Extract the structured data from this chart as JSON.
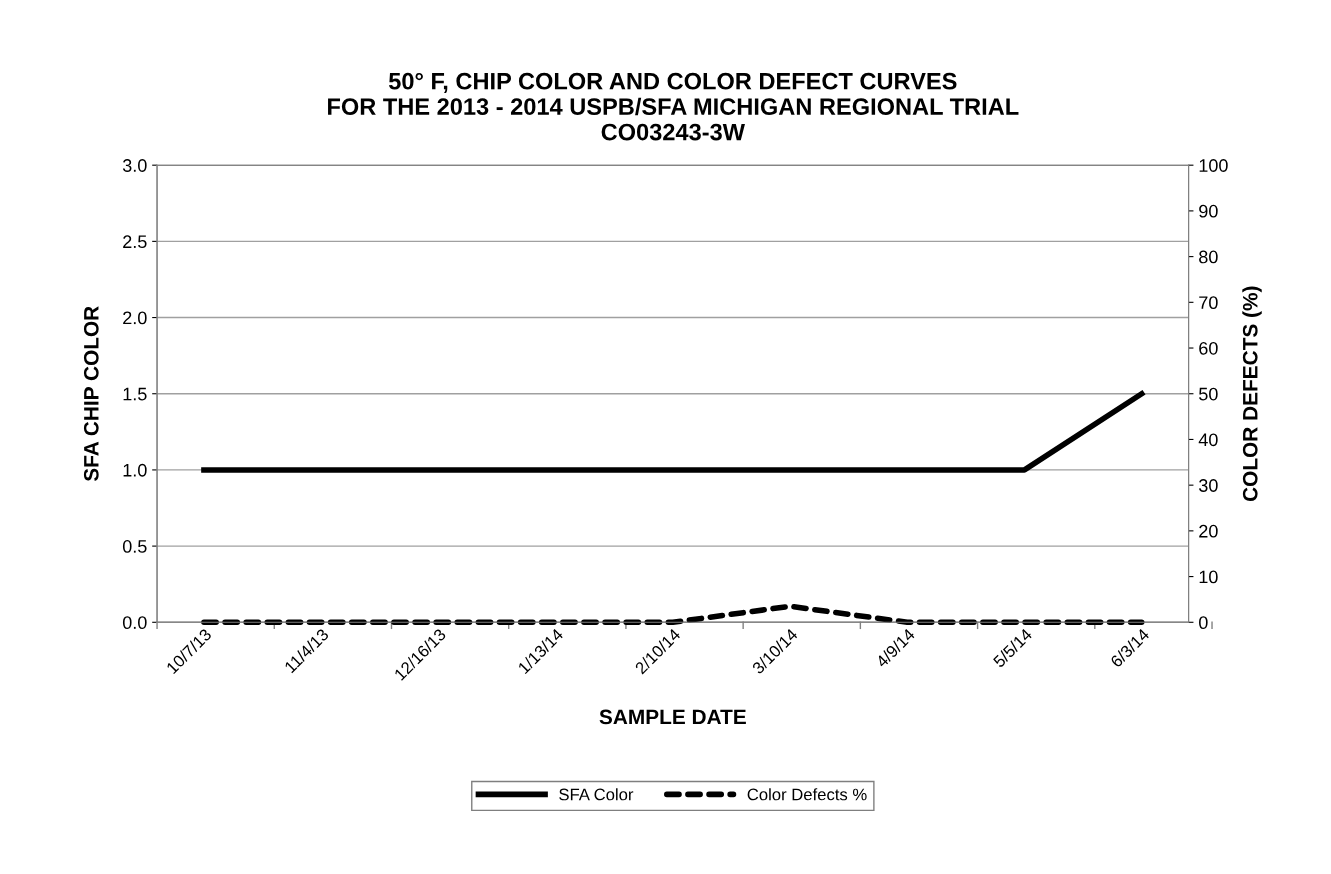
{
  "chart_data": {
    "type": "line",
    "title": "50° F, CHIP COLOR AND COLOR DEFECT CURVES\nFOR THE 2013 - 2014 USPB/SFA MICHIGAN REGIONAL TRIAL\nCO03243-3W",
    "xlabel": "SAMPLE DATE",
    "ylabel": "SFA CHIP COLOR",
    "y2label": "COLOR DEFECTS (%)",
    "categories": [
      "10/7/13",
      "11/4/13",
      "12/16/13",
      "1/13/14",
      "2/10/14",
      "3/10/14",
      "4/9/14",
      "5/5/14",
      "6/3/14"
    ],
    "series": [
      {
        "name": "SFA Color",
        "color": "#000000",
        "line_style": "solid",
        "values": [
          1.0,
          1.0,
          1.0,
          1.0,
          1.0,
          1.0,
          1.0,
          1.0,
          1.5
        ]
      },
      {
        "name": "Color Defects %",
        "color": "#000000",
        "line_style": "dashed",
        "axis": "y2",
        "values": [
          0,
          0,
          0,
          0,
          0,
          3.5,
          0,
          0,
          0
        ]
      }
    ],
    "ylim": [
      0,
      3
    ],
    "yticks": [
      {
        "value": 0,
        "label": "0.0"
      },
      {
        "value": 0.5,
        "label": "0.5"
      },
      {
        "value": 1,
        "label": "1.0"
      },
      {
        "value": 1.5,
        "label": "1.5"
      },
      {
        "value": 2,
        "label": "2.0"
      },
      {
        "value": 2.5,
        "label": "2.5"
      },
      {
        "value": 3,
        "label": "3.0"
      }
    ],
    "y2lim": [
      0,
      100
    ],
    "y2ticks": [
      0,
      10,
      20,
      30,
      40,
      50,
      60,
      70,
      80,
      90,
      100
    ],
    "grid": "y",
    "legend": "bottom",
    "marker": "none"
  }
}
